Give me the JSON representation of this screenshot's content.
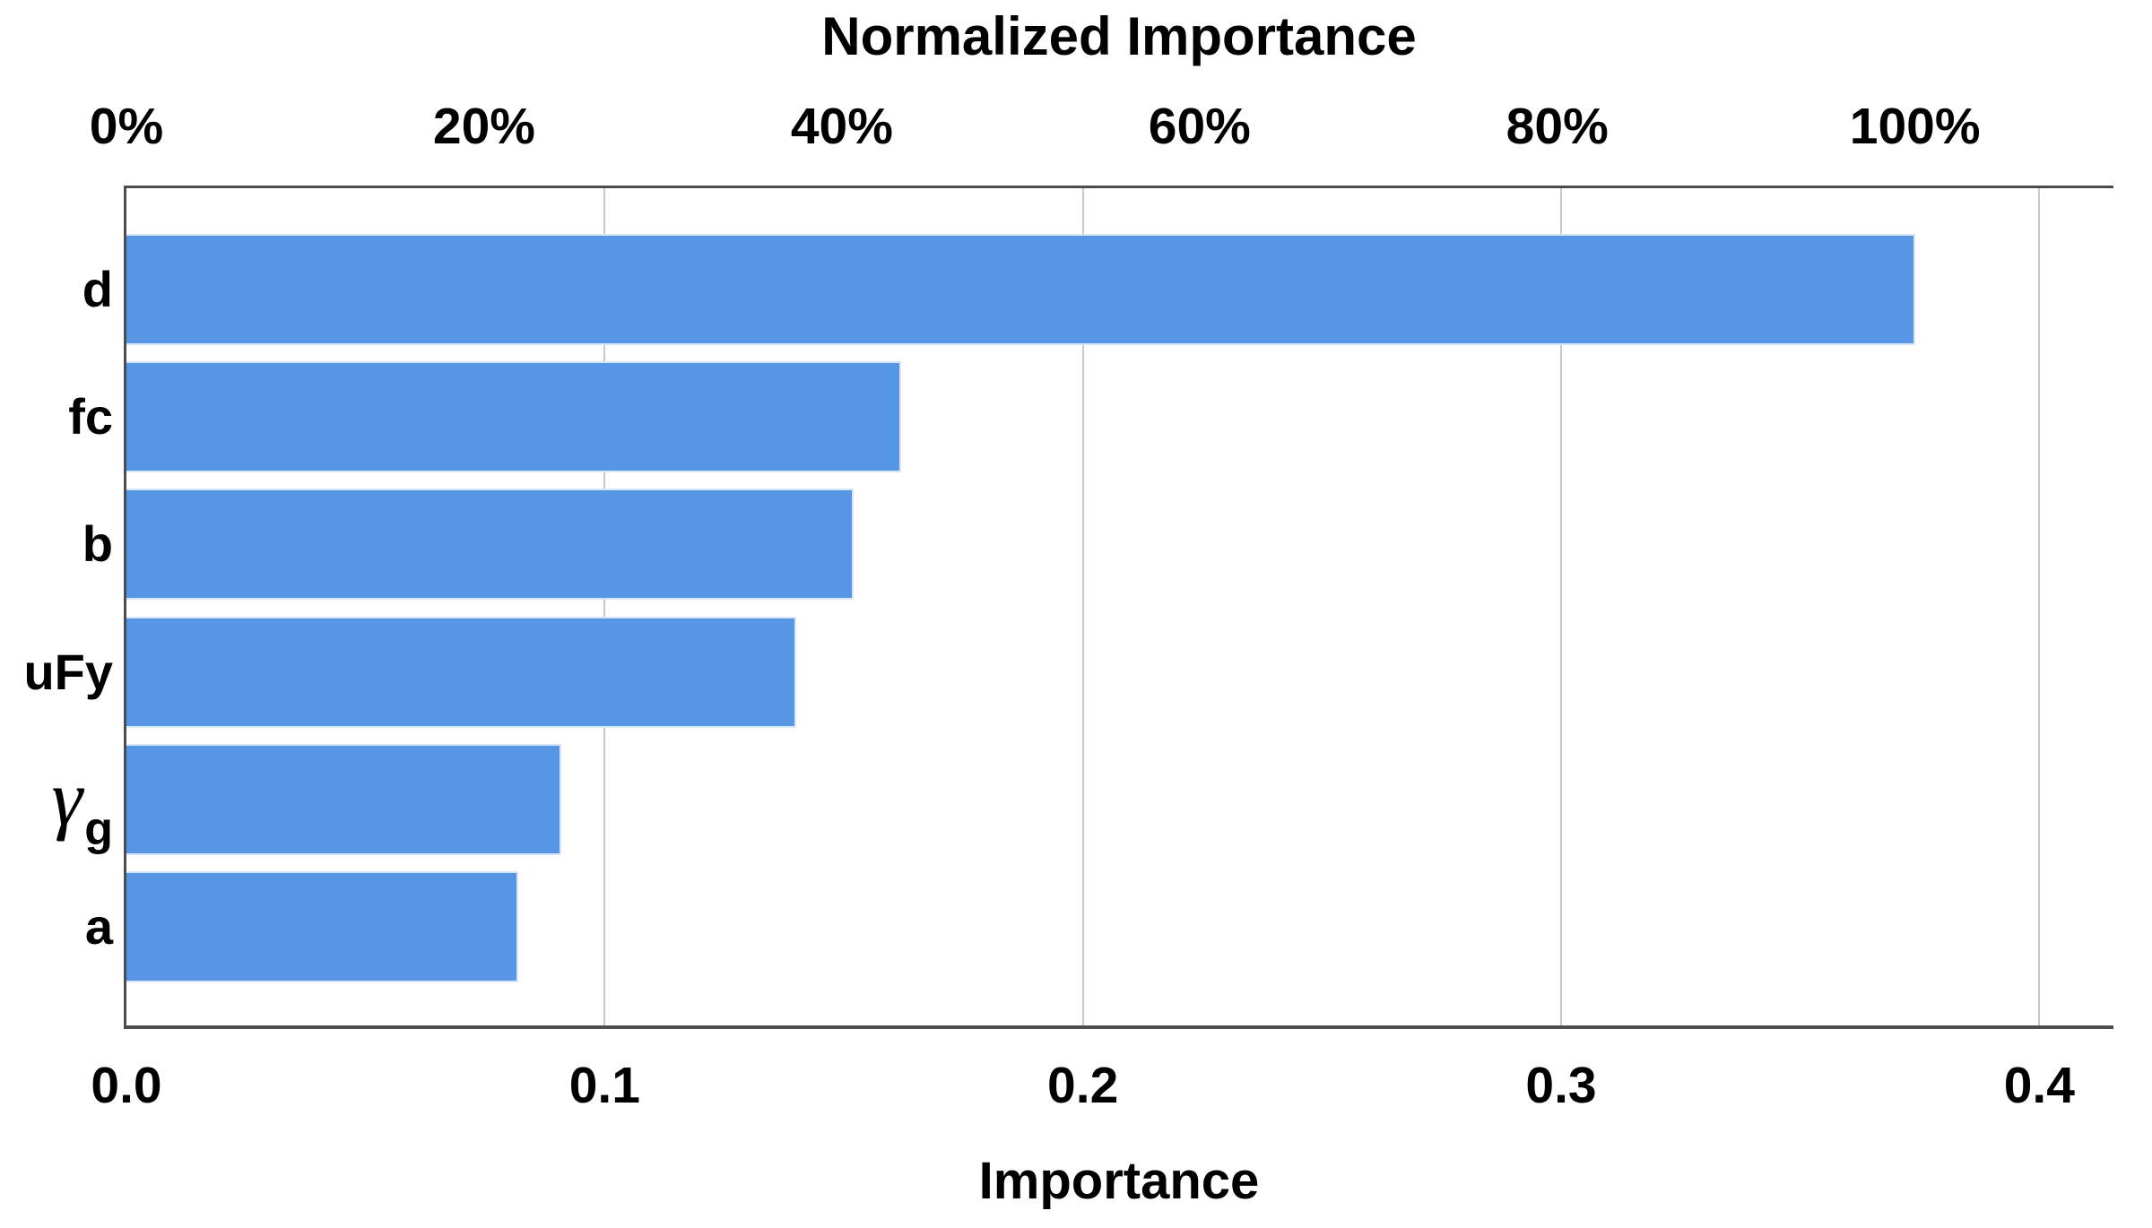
{
  "chart_data": {
    "type": "bar",
    "orientation": "horizontal",
    "categories": [
      {
        "text": "d"
      },
      {
        "text": "fc"
      },
      {
        "text": "b"
      },
      {
        "text": "uFy"
      },
      {
        "text": "γ",
        "subscript": "g"
      },
      {
        "text": "a"
      }
    ],
    "series": [
      {
        "name": "Importance",
        "values": [
          0.374,
          0.162,
          0.152,
          0.14,
          0.091,
          0.082
        ]
      }
    ],
    "normalized_percent": [
      100,
      43.3,
      40.6,
      37.4,
      24.3,
      21.9
    ],
    "top_axis": {
      "title": "Normalized Importance",
      "ticks": [
        0,
        20,
        40,
        60,
        80,
        100
      ],
      "tick_labels": [
        "0%",
        "20%",
        "40%",
        "60%",
        "80%",
        "100%"
      ],
      "full_scale_value": 0.374
    },
    "bottom_axis": {
      "title": "Importance",
      "ticks": [
        0.0,
        0.1,
        0.2,
        0.3,
        0.4
      ],
      "tick_labels": [
        "0.0",
        "0.1",
        "0.2",
        "0.3",
        "0.4"
      ],
      "min": 0,
      "max": 0.4155
    },
    "grid": "vertical-at-bottom-ticks",
    "legend": "none",
    "colors": {
      "bar_fill": "#5696E4",
      "bar_edge": "#d7e6fa",
      "gridline": "#c9c9c9",
      "axis_border": "#4d4d4d",
      "text": "#000000",
      "background": "#ffffff"
    }
  }
}
